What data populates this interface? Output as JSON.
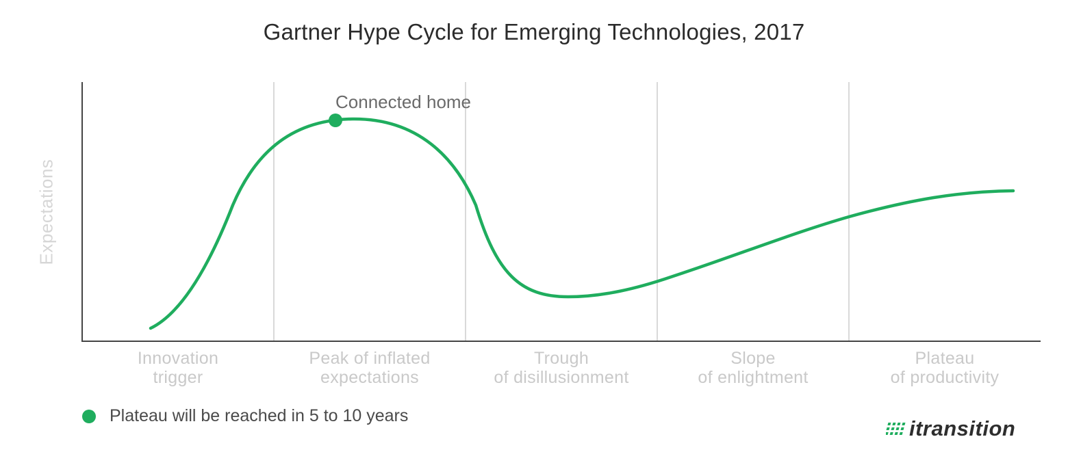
{
  "title": "Gartner Hype Cycle for Emerging Technologies, 2017",
  "y_axis_label": "Expectations",
  "phases": [
    {
      "line1": "Innovation",
      "line2": "trigger"
    },
    {
      "line1": "Peak of inflated",
      "line2": "expectations"
    },
    {
      "line1": "Trough",
      "line2": "of disillusionment"
    },
    {
      "line1": "Slope",
      "line2": "of enlightment"
    },
    {
      "line1": "Plateau",
      "line2": "of productivity"
    }
  ],
  "highlighted_point": {
    "label": "Connected home",
    "phase": "Peak of inflated expectations"
  },
  "legend": {
    "label": "Plateau will be reached in 5 to 10 years",
    "color": "#1fad5e"
  },
  "logo": {
    "text": "itransition"
  },
  "colors": {
    "curve": "#1fad5e",
    "grid": "#d9d9d9",
    "axis": "#444444"
  }
}
